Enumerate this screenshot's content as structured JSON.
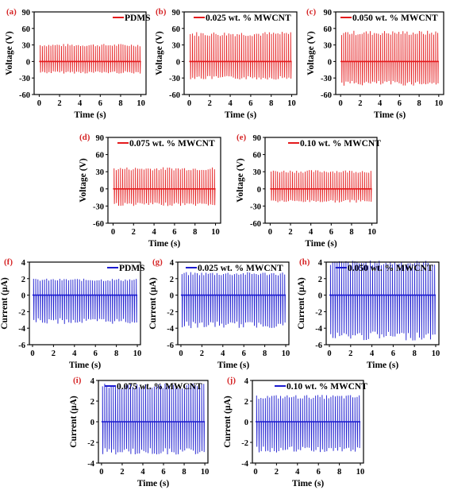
{
  "chart_data": [
    {
      "panel": "(a)",
      "type": "line",
      "legend": "PDMS",
      "color": "#e41a1c",
      "xlabel": "Time (s)",
      "ylabel": "Voltage (V)",
      "xlim": [
        -0.5,
        10.5
      ],
      "ylim": [
        -60,
        90
      ],
      "xticks": [
        0,
        2,
        4,
        6,
        8,
        10
      ],
      "yticks": [
        -60,
        -30,
        0,
        30,
        60,
        90
      ],
      "series": [
        {
          "peaks": 48,
          "max": 32,
          "min": -22
        }
      ]
    },
    {
      "panel": "(b)",
      "type": "line",
      "legend": "0.025 wt. % MWCNT",
      "color": "#e41a1c",
      "xlabel": "Time (s)",
      "ylabel": "Voltage (V)",
      "xlim": [
        -0.5,
        10.5
      ],
      "ylim": [
        -60,
        90
      ],
      "xticks": [
        0,
        2,
        4,
        6,
        8,
        10
      ],
      "yticks": [
        -60,
        -30,
        0,
        30,
        60,
        90
      ],
      "series": [
        {
          "peaks": 48,
          "max": 54,
          "min": -33
        }
      ]
    },
    {
      "panel": "(c)",
      "type": "line",
      "legend": "0.050 wt. % MWCNT",
      "color": "#e41a1c",
      "xlabel": "Time (s)",
      "ylabel": "Voltage (V)",
      "xlim": [
        -0.5,
        10.5
      ],
      "ylim": [
        -60,
        90
      ],
      "xticks": [
        0,
        2,
        4,
        6,
        8,
        10
      ],
      "yticks": [
        -60,
        -30,
        0,
        30,
        60,
        90
      ],
      "series": [
        {
          "peaks": 48,
          "max": 56,
          "min": -44
        }
      ]
    },
    {
      "panel": "(d)",
      "type": "line",
      "legend": "0.075 wt. % MWCNT",
      "color": "#e41a1c",
      "xlabel": "Time (s)",
      "ylabel": "Voltage (V)",
      "xlim": [
        -0.5,
        10.5
      ],
      "ylim": [
        -60,
        90
      ],
      "xticks": [
        0,
        2,
        4,
        6,
        8,
        10
      ],
      "yticks": [
        -60,
        -30,
        0,
        30,
        60,
        90
      ],
      "series": [
        {
          "peaks": 48,
          "max": 38,
          "min": -30
        }
      ]
    },
    {
      "panel": "(e)",
      "type": "line",
      "legend": "0.10 wt. % MWCNT",
      "color": "#e41a1c",
      "xlabel": "Time (s)",
      "ylabel": "Voltage (V)",
      "xlim": [
        -0.5,
        10.5
      ],
      "ylim": [
        -60,
        90
      ],
      "xticks": [
        0,
        2,
        4,
        6,
        8,
        10
      ],
      "yticks": [
        -60,
        -30,
        0,
        30,
        60,
        90
      ],
      "series": [
        {
          "peaks": 48,
          "max": 33,
          "min": -24
        }
      ]
    },
    {
      "panel": "(f)",
      "type": "line",
      "legend": "PDMS",
      "color": "#1a1acf",
      "xlabel": "Time (s)",
      "ylabel": "Current (µA)",
      "xlim": [
        -0.3,
        10.3
      ],
      "ylim": [
        -6,
        4
      ],
      "xticks": [
        0,
        2,
        4,
        6,
        8,
        10
      ],
      "yticks": [
        -6,
        -4,
        -2,
        0,
        2,
        4
      ],
      "series": [
        {
          "peaks": 48,
          "max": 2.0,
          "min": -3.5
        }
      ]
    },
    {
      "panel": "(g)",
      "type": "line",
      "legend": "0.025 wt. % MWCNT",
      "color": "#1a1acf",
      "xlabel": "Time (s)",
      "ylabel": "Current (µA)",
      "xlim": [
        -0.3,
        10.3
      ],
      "ylim": [
        -6,
        4
      ],
      "xticks": [
        0,
        2,
        4,
        6,
        8,
        10
      ],
      "yticks": [
        -6,
        -4,
        -2,
        0,
        2,
        4
      ],
      "series": [
        {
          "peaks": 48,
          "max": 2.8,
          "min": -4.0
        }
      ]
    },
    {
      "panel": "(h)",
      "type": "line",
      "legend": "0.050 wt. % MWCNT",
      "color": "#1a1acf",
      "xlabel": "Time (s)",
      "ylabel": "Current (µA)",
      "xlim": [
        -0.3,
        10.3
      ],
      "ylim": [
        -6,
        4
      ],
      "xticks": [
        0,
        2,
        4,
        6,
        8,
        10
      ],
      "yticks": [
        -6,
        -4,
        -2,
        0,
        2,
        4
      ],
      "series": [
        {
          "peaks": 48,
          "max": 4.2,
          "min": -5.5
        }
      ]
    },
    {
      "panel": "(i)",
      "type": "line",
      "legend": "0.075 wt. % MWCNT",
      "color": "#1a1acf",
      "xlabel": "Time (s)",
      "ylabel": "Current (µA)",
      "xlim": [
        -0.3,
        10.3
      ],
      "ylim": [
        -4,
        4
      ],
      "xticks": [
        0,
        2,
        4,
        6,
        8,
        10
      ],
      "yticks": [
        -4,
        -2,
        0,
        2,
        4
      ],
      "series": [
        {
          "peaks": 48,
          "max": 3.7,
          "min": -3.2
        }
      ]
    },
    {
      "panel": "(j)",
      "type": "line",
      "legend": "0.10 wt. % MWCNT",
      "color": "#1a1acf",
      "xlabel": "Time (s)",
      "ylabel": "Current (µA)",
      "xlim": [
        -0.3,
        10.3
      ],
      "ylim": [
        -4,
        4
      ],
      "xticks": [
        0,
        2,
        4,
        6,
        8,
        10
      ],
      "yticks": [
        -4,
        -2,
        0,
        2,
        4
      ],
      "series": [
        {
          "peaks": 48,
          "max": 2.6,
          "min": -3.0
        }
      ]
    }
  ]
}
